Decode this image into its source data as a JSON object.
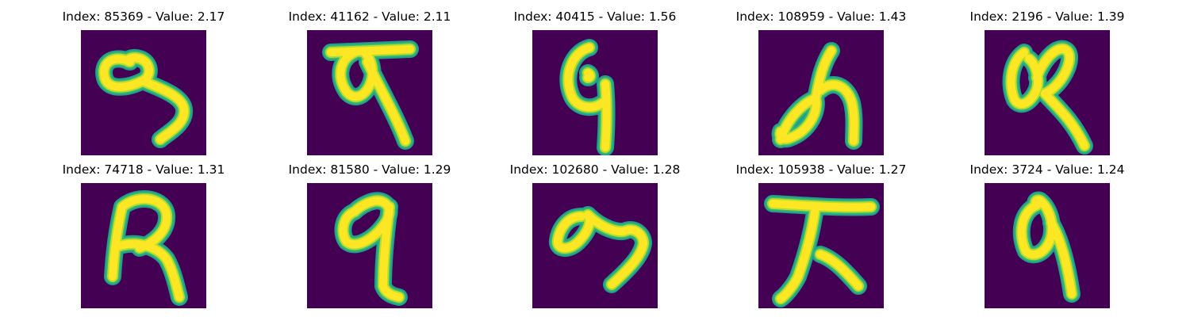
{
  "figure": {
    "background": "#ffffff",
    "image_background": "#440154",
    "stroke_colors": [
      "#fde725",
      "#b5de2b",
      "#35b779",
      "#1f9e89"
    ],
    "panels": [
      {
        "caption": "Index: 85369 - Value: 2.17",
        "depicts": "handwritten glyph"
      },
      {
        "caption": "Index: 41162 - Value: 2.11",
        "depicts": "handwritten glyph"
      },
      {
        "caption": "Index: 40415 - Value: 1.56",
        "depicts": "handwritten glyph"
      },
      {
        "caption": "Index: 108959 - Value: 1.43",
        "depicts": "handwritten glyph"
      },
      {
        "caption": "Index: 2196 - Value: 1.39",
        "depicts": "handwritten glyph"
      },
      {
        "caption": "Index: 74718 - Value: 1.31",
        "depicts": "handwritten glyph"
      },
      {
        "caption": "Index: 81580 - Value: 1.29",
        "depicts": "handwritten glyph"
      },
      {
        "caption": "Index: 102680 - Value: 1.28",
        "depicts": "handwritten glyph"
      },
      {
        "caption": "Index: 105938 - Value: 1.27",
        "depicts": "handwritten glyph"
      },
      {
        "caption": "Index: 3724 - Value: 1.24",
        "depicts": "handwritten glyph"
      }
    ]
  }
}
